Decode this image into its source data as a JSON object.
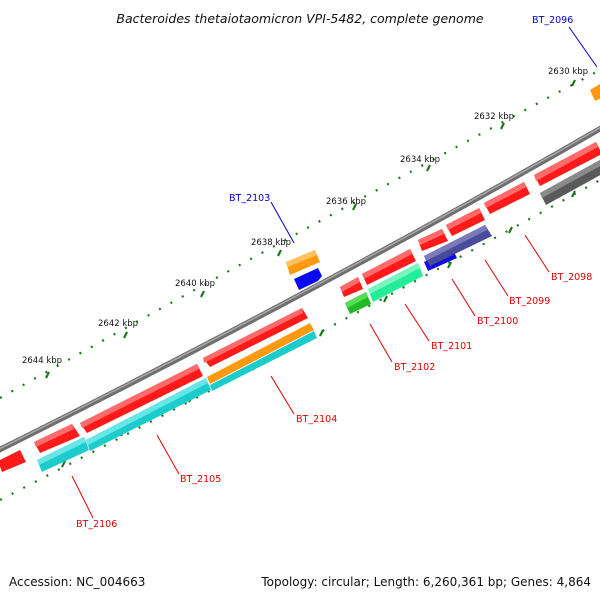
{
  "title": "Bacteroides thetaiotaomicron VPI-5482, complete genome",
  "footer": {
    "accession": "Accession: NC_004663",
    "summary": "Topology: circular; Length: 6,260,361 bp; Genes: 4,864"
  },
  "ticks": [
    "2630 kbp",
    "2632 kbp",
    "2634 kbp",
    "2636 kbp",
    "2638 kbp",
    "2640 kbp",
    "2642 kbp",
    "2644 kbp"
  ],
  "genes": [
    {
      "id": "BT_2096",
      "color": "#0000cc"
    },
    {
      "id": "BT_2098",
      "color": "#dd0000"
    },
    {
      "id": "BT_2099",
      "color": "#dd0000"
    },
    {
      "id": "BT_2100",
      "color": "#dd0000"
    },
    {
      "id": "BT_2101",
      "color": "#dd0000"
    },
    {
      "id": "BT_2102",
      "color": "#dd0000"
    },
    {
      "id": "BT_2103",
      "color": "#0000cc"
    },
    {
      "id": "BT_2104",
      "color": "#dd0000"
    },
    {
      "id": "BT_2105",
      "color": "#dd0000"
    },
    {
      "id": "BT_2106",
      "color": "#dd0000"
    }
  ],
  "colors": {
    "backbone": "#8a8a8a",
    "tick": "#1a7a1a",
    "forward": "#ff1111",
    "blue": "#0a0aee",
    "orange": "#ff9a10",
    "cyan": "#1ccccc",
    "green": "#33cc33",
    "spring": "#22ee99",
    "slate": "#4a4a9a",
    "gray": "#666666"
  }
}
